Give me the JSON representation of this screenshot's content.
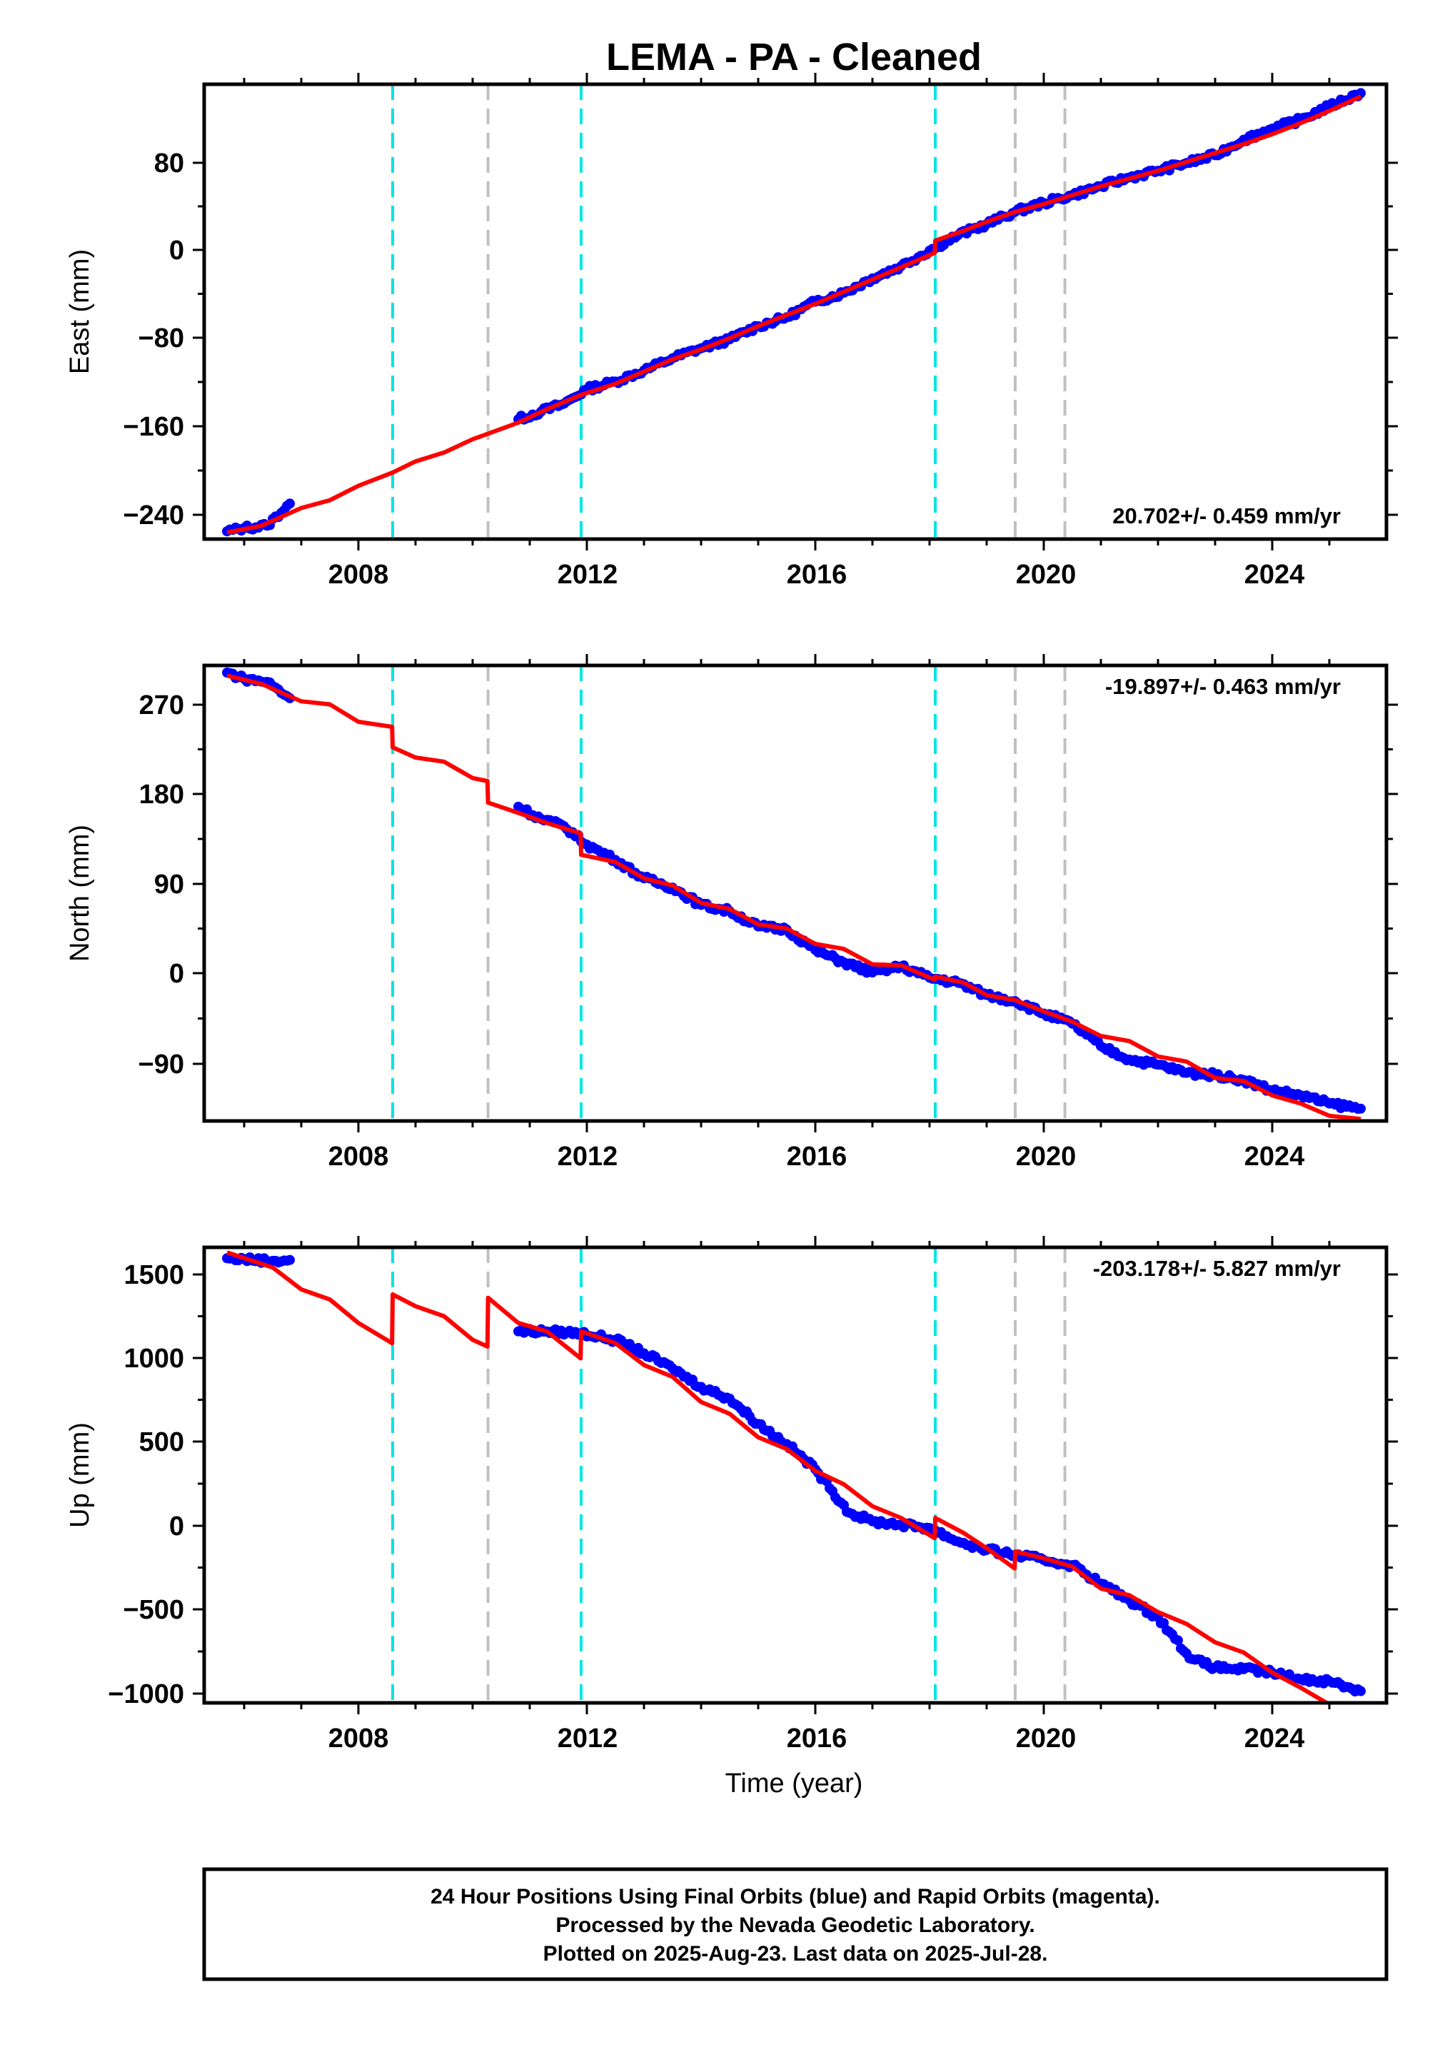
{
  "title": "LEMA  - PA - Cleaned",
  "xlabel": "Time (year)",
  "footer": {
    "lines": [
      "24 Hour Positions Using Final Orbits (blue) and Rapid Orbits (magenta).",
      "Processed by the Nevada Geodetic Laboratory.",
      "Plotted on 2025-Aug-23. Last data on 2025-Jul-28."
    ]
  },
  "colors": {
    "data_points": "#0000ff",
    "model_line": "#ff0000",
    "equipment_change": "#00e5e5",
    "earthquake": "#c0c0c0"
  },
  "chart_data": [
    {
      "type": "scatter",
      "name": "east",
      "ylabel": "East (mm)",
      "rate_label": "20.702+/- 0.459 mm/yr",
      "rate_position": "bottom-right",
      "xlim": [
        2005.3,
        2026.0
      ],
      "ylim": [
        -260,
        150
      ],
      "xticks": [
        "2008",
        "2012",
        "2016",
        "2020",
        "2024"
      ],
      "yticks": [
        "80",
        "0",
        "−80",
        "−160",
        "−240"
      ],
      "equipment_lines": [
        2008.6,
        2011.9,
        2018.1
      ],
      "event_lines": [
        2010.27,
        2019.5,
        2020.37
      ],
      "data_points": [
        [
          2005.7,
          -253
        ],
        [
          2006.0,
          -250
        ],
        [
          2006.4,
          -248
        ],
        [
          2006.8,
          -228
        ],
        [
          2010.8,
          -152
        ],
        [
          2011.2,
          -145
        ],
        [
          2011.6,
          -138
        ],
        [
          2012.0,
          -125
        ],
        [
          2012.5,
          -118
        ],
        [
          2013.0,
          -108
        ],
        [
          2013.5,
          -97
        ],
        [
          2014.0,
          -88
        ],
        [
          2014.5,
          -80
        ],
        [
          2015.0,
          -68
        ],
        [
          2015.5,
          -60
        ],
        [
          2016.0,
          -46
        ],
        [
          2016.5,
          -38
        ],
        [
          2017.0,
          -25
        ],
        [
          2017.5,
          -14
        ],
        [
          2018.0,
          0
        ],
        [
          2018.5,
          14
        ],
        [
          2019.0,
          24
        ],
        [
          2019.5,
          35
        ],
        [
          2020.0,
          43
        ],
        [
          2020.5,
          50
        ],
        [
          2021.0,
          58
        ],
        [
          2021.5,
          66
        ],
        [
          2022.0,
          72
        ],
        [
          2022.5,
          79
        ],
        [
          2023.0,
          86
        ],
        [
          2023.5,
          100
        ],
        [
          2024.0,
          110
        ],
        [
          2024.5,
          118
        ],
        [
          2025.0,
          130
        ],
        [
          2025.55,
          142
        ]
      ],
      "model_line": [
        [
          2005.7,
          -254
        ],
        [
          2006.3,
          -248
        ],
        [
          2007.0,
          -232
        ],
        [
          2007.5,
          -225
        ],
        [
          2008.0,
          -212
        ],
        [
          2008.6,
          -200
        ],
        [
          2009.0,
          -190
        ],
        [
          2009.5,
          -182
        ],
        [
          2010.0,
          -170
        ],
        [
          2010.27,
          -165
        ],
        [
          2010.8,
          -155
        ],
        [
          2011.3,
          -143
        ],
        [
          2011.9,
          -130
        ],
        [
          2012.5,
          -120
        ],
        [
          2013.0,
          -109
        ],
        [
          2013.5,
          -98
        ],
        [
          2014.0,
          -89
        ],
        [
          2014.5,
          -79
        ],
        [
          2015.0,
          -68
        ],
        [
          2015.5,
          -58
        ],
        [
          2016.0,
          -48
        ],
        [
          2016.5,
          -37
        ],
        [
          2017.0,
          -26
        ],
        [
          2017.5,
          -15
        ],
        [
          2018.09,
          -2
        ],
        [
          2018.1,
          9
        ],
        [
          2018.6,
          18
        ],
        [
          2019.0,
          26
        ],
        [
          2019.5,
          35
        ],
        [
          2020.0,
          42
        ],
        [
          2020.5,
          50
        ],
        [
          2021.0,
          58
        ],
        [
          2021.5,
          65
        ],
        [
          2022.0,
          72
        ],
        [
          2022.5,
          80
        ],
        [
          2023.0,
          88
        ],
        [
          2023.5,
          96
        ],
        [
          2024.0,
          105
        ],
        [
          2024.5,
          115
        ],
        [
          2025.0,
          126
        ],
        [
          2025.55,
          139
        ]
      ]
    },
    {
      "type": "scatter",
      "name": "north",
      "ylabel": "North (mm)",
      "rate_label": "-19.897+/- 0.463 mm/yr",
      "rate_position": "top-right",
      "xlim": [
        2005.3,
        2026.0
      ],
      "ylim": [
        -145,
        300
      ],
      "xticks": [
        "2008",
        "2012",
        "2016",
        "2020",
        "2024"
      ],
      "yticks": [
        "270",
        "180",
        "90",
        "0",
        "−90"
      ],
      "equipment_lines": [
        2008.6,
        2011.9,
        2018.1
      ],
      "event_lines": [
        2010.27,
        2019.5,
        2020.37
      ],
      "data_points": [
        [
          2005.7,
          293
        ],
        [
          2006.0,
          287
        ],
        [
          2006.4,
          284
        ],
        [
          2006.8,
          268
        ],
        [
          2010.8,
          162
        ],
        [
          2011.2,
          150
        ],
        [
          2011.6,
          143
        ],
        [
          2012.0,
          125
        ],
        [
          2012.5,
          110
        ],
        [
          2013.0,
          92
        ],
        [
          2013.5,
          83
        ],
        [
          2014.0,
          66
        ],
        [
          2014.5,
          60
        ],
        [
          2015.0,
          45
        ],
        [
          2015.5,
          42
        ],
        [
          2016.0,
          22
        ],
        [
          2016.5,
          10
        ],
        [
          2017.0,
          0
        ],
        [
          2017.5,
          6
        ],
        [
          2018.0,
          -5
        ],
        [
          2018.5,
          -10
        ],
        [
          2019.0,
          -22
        ],
        [
          2019.5,
          -28
        ],
        [
          2020.0,
          -40
        ],
        [
          2020.5,
          -50
        ],
        [
          2021.0,
          -72
        ],
        [
          2021.5,
          -85
        ],
        [
          2022.0,
          -90
        ],
        [
          2022.5,
          -98
        ],
        [
          2023.0,
          -100
        ],
        [
          2023.5,
          -105
        ],
        [
          2024.0,
          -115
        ],
        [
          2024.5,
          -120
        ],
        [
          2025.0,
          -128
        ],
        [
          2025.55,
          -133
        ]
      ],
      "model_line": [
        [
          2005.7,
          290
        ],
        [
          2006.3,
          282
        ],
        [
          2007.0,
          265
        ],
        [
          2007.5,
          262
        ],
        [
          2008.0,
          245
        ],
        [
          2008.59,
          240
        ],
        [
          2008.6,
          220
        ],
        [
          2009.0,
          210
        ],
        [
          2009.5,
          206
        ],
        [
          2010.0,
          190
        ],
        [
          2010.26,
          187
        ],
        [
          2010.27,
          166
        ],
        [
          2010.8,
          156
        ],
        [
          2011.3,
          146
        ],
        [
          2011.89,
          136
        ],
        [
          2011.9,
          115
        ],
        [
          2012.5,
          108
        ],
        [
          2013.0,
          92
        ],
        [
          2013.5,
          85
        ],
        [
          2014.0,
          68
        ],
        [
          2014.5,
          62
        ],
        [
          2015.0,
          47
        ],
        [
          2015.5,
          43
        ],
        [
          2016.0,
          28
        ],
        [
          2016.5,
          23
        ],
        [
          2017.0,
          8
        ],
        [
          2017.5,
          7
        ],
        [
          2018.09,
          -7
        ],
        [
          2018.1,
          -4
        ],
        [
          2018.6,
          -10
        ],
        [
          2019.0,
          -22
        ],
        [
          2019.5,
          -27
        ],
        [
          2020.0,
          -38
        ],
        [
          2020.5,
          -48
        ],
        [
          2021.0,
          -62
        ],
        [
          2021.5,
          -67
        ],
        [
          2022.0,
          -82
        ],
        [
          2022.5,
          -87
        ],
        [
          2023.0,
          -103
        ],
        [
          2023.5,
          -106
        ],
        [
          2024.0,
          -120
        ],
        [
          2024.5,
          -128
        ],
        [
          2025.0,
          -140
        ],
        [
          2025.55,
          -143
        ]
      ]
    },
    {
      "type": "scatter",
      "name": "up",
      "ylabel": "Up (mm)",
      "rate_label": "-203.178+/- 5.827 mm/yr",
      "rate_position": "top-right",
      "xlim": [
        2005.3,
        2026.0
      ],
      "ylim": [
        -1060,
        1650
      ],
      "xticks": [
        "2008",
        "2012",
        "2016",
        "2020",
        "2024"
      ],
      "yticks": [
        "1500",
        "1000",
        "500",
        "0",
        "−500",
        "−1000"
      ],
      "equipment_lines": [
        2008.6,
        2011.9,
        2018.1
      ],
      "event_lines": [
        2010.27,
        2019.5,
        2020.37
      ],
      "data_points": [
        [
          2005.7,
          1585
        ],
        [
          2006.0,
          1580
        ],
        [
          2006.5,
          1570
        ],
        [
          2006.8,
          1575
        ],
        [
          2010.8,
          1150
        ],
        [
          2011.3,
          1150
        ],
        [
          2011.9,
          1140
        ],
        [
          2012.5,
          1100
        ],
        [
          2013.0,
          1020
        ],
        [
          2013.5,
          930
        ],
        [
          2014.0,
          820
        ],
        [
          2014.5,
          750
        ],
        [
          2015.0,
          600
        ],
        [
          2015.5,
          480
        ],
        [
          2016.0,
          330
        ],
        [
          2016.3,
          200
        ],
        [
          2016.6,
          70
        ],
        [
          2017.0,
          20
        ],
        [
          2017.5,
          0
        ],
        [
          2018.0,
          -20
        ],
        [
          2018.5,
          -100
        ],
        [
          2019.0,
          -150
        ],
        [
          2019.5,
          -180
        ],
        [
          2020.0,
          -210
        ],
        [
          2020.5,
          -240
        ],
        [
          2021.0,
          -350
        ],
        [
          2021.5,
          -450
        ],
        [
          2022.0,
          -550
        ],
        [
          2022.3,
          -680
        ],
        [
          2022.6,
          -800
        ],
        [
          2023.0,
          -850
        ],
        [
          2023.5,
          -860
        ],
        [
          2024.0,
          -880
        ],
        [
          2024.5,
          -920
        ],
        [
          2025.0,
          -930
        ],
        [
          2025.55,
          -990
        ]
      ],
      "model_line": [
        [
          2005.7,
          1620
        ],
        [
          2006.5,
          1530
        ],
        [
          2007.0,
          1400
        ],
        [
          2007.5,
          1340
        ],
        [
          2008.0,
          1200
        ],
        [
          2008.59,
          1080
        ],
        [
          2008.6,
          1370
        ],
        [
          2009.0,
          1300
        ],
        [
          2009.5,
          1240
        ],
        [
          2010.0,
          1100
        ],
        [
          2010.26,
          1060
        ],
        [
          2010.27,
          1350
        ],
        [
          2010.8,
          1200
        ],
        [
          2011.3,
          1150
        ],
        [
          2011.89,
          990
        ],
        [
          2011.9,
          1150
        ],
        [
          2012.5,
          1080
        ],
        [
          2013.0,
          950
        ],
        [
          2013.5,
          880
        ],
        [
          2014.0,
          730
        ],
        [
          2014.5,
          660
        ],
        [
          2015.0,
          520
        ],
        [
          2015.5,
          450
        ],
        [
          2016.0,
          320
        ],
        [
          2016.5,
          240
        ],
        [
          2017.0,
          110
        ],
        [
          2017.5,
          40
        ],
        [
          2018.09,
          -80
        ],
        [
          2018.1,
          40
        ],
        [
          2018.6,
          -50
        ],
        [
          2019.0,
          -140
        ],
        [
          2019.49,
          -260
        ],
        [
          2019.5,
          -160
        ],
        [
          2020.0,
          -200
        ],
        [
          2020.5,
          -250
        ],
        [
          2021.0,
          -380
        ],
        [
          2021.5,
          -420
        ],
        [
          2022.0,
          -520
        ],
        [
          2022.5,
          -590
        ],
        [
          2023.0,
          -700
        ],
        [
          2023.5,
          -760
        ],
        [
          2024.0,
          -880
        ],
        [
          2024.5,
          -970
        ],
        [
          2024.95,
          -1060
        ]
      ]
    }
  ]
}
